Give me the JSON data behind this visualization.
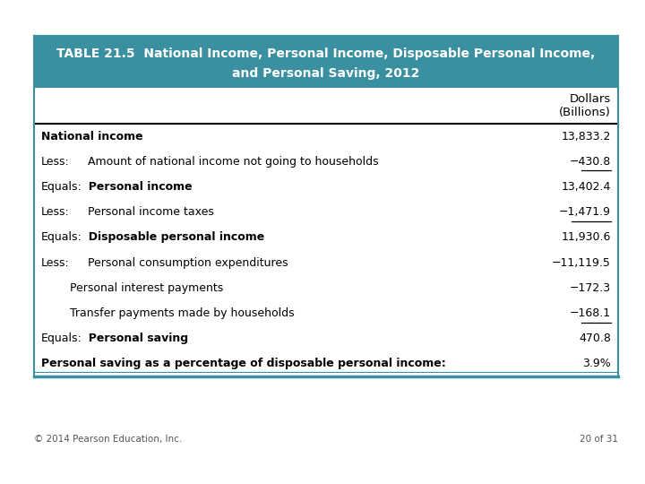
{
  "title_line1": "TABLE 21.5  National Income, Personal Income, Disposable Personal Income,",
  "title_line2": "and Personal Saving, 2012",
  "header_bg": "#3a8fa0",
  "header_text_color": "#ffffff",
  "rows": [
    {
      "prefix": "",
      "label": "National income",
      "value": "13,833.2",
      "bold_label": true,
      "bold_value": false,
      "indent": 0,
      "underline_value": false
    },
    {
      "prefix": "Less:",
      "label": "  Amount of national income not going to households",
      "value": "−430.8",
      "bold_label": false,
      "bold_value": false,
      "indent": 1,
      "underline_value": true
    },
    {
      "prefix": "Equals:",
      "label": "  Personal income",
      "value": "13,402.4",
      "bold_label": true,
      "bold_value": false,
      "indent": 0,
      "underline_value": false
    },
    {
      "prefix": "Less:",
      "label": "  Personal income taxes",
      "value": "−1,471.9",
      "bold_label": false,
      "bold_value": false,
      "indent": 1,
      "underline_value": true
    },
    {
      "prefix": "Equals:",
      "label": "  Disposable personal income",
      "value": "11,930.6",
      "bold_label": true,
      "bold_value": false,
      "indent": 0,
      "underline_value": false
    },
    {
      "prefix": "Less:",
      "label": "  Personal consumption expenditures",
      "value": "−11,119.5",
      "bold_label": false,
      "bold_value": false,
      "indent": 1,
      "underline_value": false
    },
    {
      "prefix": "",
      "label": "        Personal interest payments",
      "value": "−172.3",
      "bold_label": false,
      "bold_value": false,
      "indent": 0,
      "underline_value": false
    },
    {
      "prefix": "",
      "label": "        Transfer payments made by households",
      "value": "−168.1",
      "bold_label": false,
      "bold_value": false,
      "indent": 0,
      "underline_value": true
    },
    {
      "prefix": "Equals:",
      "label": "  Personal saving",
      "value": "470.8",
      "bold_label": true,
      "bold_value": false,
      "indent": 0,
      "underline_value": false
    },
    {
      "prefix": "",
      "label": "Personal saving as a percentage of disposable personal income:",
      "value": "3.9%",
      "bold_label": true,
      "bold_value": false,
      "indent": 0,
      "underline_value": false
    }
  ],
  "footer_left": "© 2014 Pearson Education, Inc.",
  "footer_right": "20 of 31",
  "bg_color": "#ffffff",
  "border_color": "#3a8fa0",
  "text_color": "#000000",
  "font_size": 9.0,
  "title_font_size": 10.0
}
